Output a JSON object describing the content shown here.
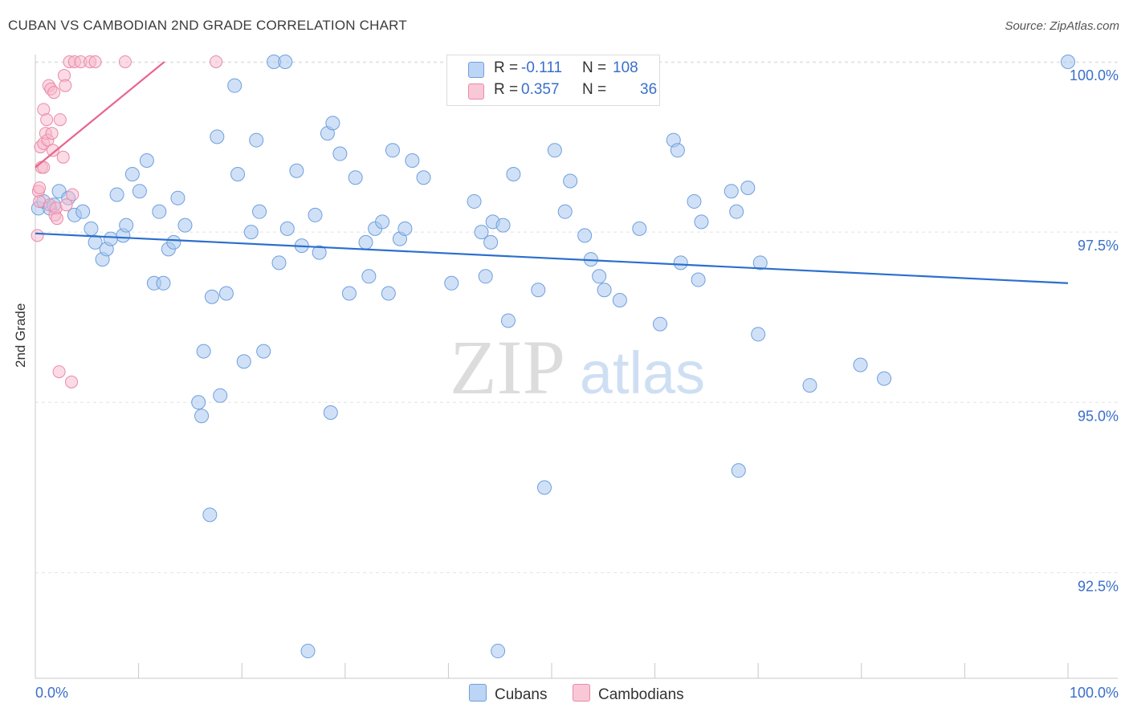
{
  "title": "CUBAN VS CAMBODIAN 2ND GRADE CORRELATION CHART",
  "source": "Source: ZipAtlas.com",
  "watermark": {
    "zip": "ZIP",
    "atlas": "atlas"
  },
  "legend": {
    "rows": [
      {
        "r_label": "R =",
        "r_value": "-0.111",
        "n_label": "N =",
        "n_value": "108"
      },
      {
        "r_label": "R =",
        "r_value": "0.357",
        "n_label": "N =",
        "n_value": "36"
      }
    ]
  },
  "colors": {
    "cuban_fill": "#a9c8f0",
    "cuban_stroke": "#6f9fdc",
    "cuban_line": "#2b6fce",
    "cambodian_fill": "#f7b8cb",
    "cambodian_stroke": "#e98aa8",
    "cambodian_line": "#e8658f",
    "axis_label": "#3a6fc9",
    "grid": "#e4e4e4"
  },
  "chart_data": {
    "type": "scatter",
    "title": "CUBAN VS CAMBODIAN 2ND GRADE CORRELATION CHART",
    "xlabel": "",
    "ylabel": "2nd Grade",
    "xlim": [
      0,
      100
    ],
    "ylim": [
      90.95,
      100.2
    ],
    "x_tick_labels": [
      "0.0%",
      "100.0%"
    ],
    "y_ticks": [
      92.5,
      95.0,
      97.5,
      100.0
    ],
    "y_tick_labels": [
      "92.5%",
      "95.0%",
      "97.5%",
      "100.0%"
    ],
    "grid": true,
    "legend_position": "bottom",
    "series": [
      {
        "name": "Cubans",
        "r": -0.111,
        "n": 108,
        "trend": {
          "x": [
            0,
            100
          ],
          "y": [
            97.48,
            96.75
          ]
        },
        "points": [
          [
            0.3,
            97.85
          ],
          [
            0.8,
            97.95
          ],
          [
            1.4,
            97.85
          ],
          [
            1.8,
            97.9
          ],
          [
            2.3,
            98.1
          ],
          [
            3.2,
            98.0
          ],
          [
            3.8,
            97.75
          ],
          [
            4.6,
            97.8
          ],
          [
            5.4,
            97.55
          ],
          [
            5.8,
            97.35
          ],
          [
            6.5,
            97.1
          ],
          [
            6.9,
            97.25
          ],
          [
            7.3,
            97.4
          ],
          [
            7.9,
            98.05
          ],
          [
            8.5,
            97.45
          ],
          [
            8.8,
            97.6
          ],
          [
            9.4,
            98.35
          ],
          [
            10.1,
            98.1
          ],
          [
            10.8,
            98.55
          ],
          [
            11.5,
            96.75
          ],
          [
            12.0,
            97.8
          ],
          [
            12.4,
            96.75
          ],
          [
            12.9,
            97.25
          ],
          [
            13.4,
            97.35
          ],
          [
            13.8,
            98.0
          ],
          [
            14.5,
            97.6
          ],
          [
            15.8,
            95.0
          ],
          [
            16.1,
            94.8
          ],
          [
            16.3,
            95.75
          ],
          [
            16.9,
            93.35
          ],
          [
            17.1,
            96.55
          ],
          [
            17.6,
            98.9
          ],
          [
            17.9,
            95.1
          ],
          [
            18.5,
            96.6
          ],
          [
            19.3,
            99.65
          ],
          [
            19.6,
            98.35
          ],
          [
            20.2,
            95.6
          ],
          [
            20.9,
            97.5
          ],
          [
            21.4,
            98.85
          ],
          [
            21.7,
            97.8
          ],
          [
            22.1,
            95.75
          ],
          [
            23.1,
            100.0
          ],
          [
            23.6,
            97.05
          ],
          [
            24.2,
            100.0
          ],
          [
            24.4,
            97.55
          ],
          [
            25.3,
            98.4
          ],
          [
            25.8,
            97.3
          ],
          [
            26.4,
            91.35
          ],
          [
            27.1,
            97.75
          ],
          [
            27.5,
            97.2
          ],
          [
            28.3,
            98.95
          ],
          [
            28.6,
            94.85
          ],
          [
            28.8,
            99.1
          ],
          [
            29.5,
            98.65
          ],
          [
            30.4,
            96.6
          ],
          [
            31.0,
            98.3
          ],
          [
            32.0,
            97.35
          ],
          [
            32.3,
            96.85
          ],
          [
            32.9,
            97.55
          ],
          [
            33.6,
            97.65
          ],
          [
            34.2,
            96.6
          ],
          [
            34.6,
            98.7
          ],
          [
            35.3,
            97.4
          ],
          [
            35.8,
            97.55
          ],
          [
            36.5,
            98.55
          ],
          [
            37.6,
            98.3
          ],
          [
            40.3,
            96.75
          ],
          [
            42.5,
            97.95
          ],
          [
            43.2,
            97.5
          ],
          [
            43.6,
            96.85
          ],
          [
            44.1,
            97.35
          ],
          [
            44.3,
            97.65
          ],
          [
            44.8,
            91.35
          ],
          [
            45.3,
            97.6
          ],
          [
            45.8,
            96.2
          ],
          [
            46.3,
            98.35
          ],
          [
            48.7,
            96.65
          ],
          [
            49.3,
            93.75
          ],
          [
            50.3,
            98.7
          ],
          [
            51.3,
            97.8
          ],
          [
            51.8,
            98.25
          ],
          [
            53.2,
            97.45
          ],
          [
            53.8,
            97.1
          ],
          [
            54.6,
            96.85
          ],
          [
            55.1,
            96.65
          ],
          [
            56.6,
            96.5
          ],
          [
            58.5,
            97.55
          ],
          [
            60.5,
            96.15
          ],
          [
            61.8,
            98.85
          ],
          [
            62.2,
            98.7
          ],
          [
            62.5,
            97.05
          ],
          [
            63.8,
            97.95
          ],
          [
            64.2,
            96.8
          ],
          [
            64.5,
            97.65
          ],
          [
            67.4,
            98.1
          ],
          [
            67.9,
            97.8
          ],
          [
            68.1,
            94.0
          ],
          [
            69.0,
            98.15
          ],
          [
            70.0,
            96.0
          ],
          [
            70.2,
            97.05
          ],
          [
            75.0,
            95.25
          ],
          [
            79.9,
            95.55
          ],
          [
            82.2,
            95.35
          ],
          [
            100.0,
            100.0
          ]
        ]
      },
      {
        "name": "Cambodians",
        "r": 0.357,
        "n": 36,
        "trend": {
          "x": [
            0,
            12.5
          ],
          "y": [
            98.45,
            100.0
          ]
        },
        "points": [
          [
            0.2,
            97.45
          ],
          [
            0.3,
            98.1
          ],
          [
            0.4,
            97.95
          ],
          [
            0.4,
            98.15
          ],
          [
            0.5,
            98.75
          ],
          [
            0.6,
            98.45
          ],
          [
            0.8,
            98.8
          ],
          [
            0.8,
            98.45
          ],
          [
            0.8,
            99.3
          ],
          [
            1.0,
            98.95
          ],
          [
            1.1,
            99.15
          ],
          [
            1.2,
            98.85
          ],
          [
            1.3,
            99.65
          ],
          [
            1.4,
            97.9
          ],
          [
            1.5,
            99.6
          ],
          [
            1.6,
            98.95
          ],
          [
            1.7,
            98.7
          ],
          [
            1.8,
            99.55
          ],
          [
            1.9,
            97.75
          ],
          [
            2.0,
            97.85
          ],
          [
            2.1,
            97.7
          ],
          [
            2.3,
            95.45
          ],
          [
            2.4,
            99.15
          ],
          [
            2.7,
            98.6
          ],
          [
            2.8,
            99.8
          ],
          [
            2.9,
            99.65
          ],
          [
            3.0,
            97.9
          ],
          [
            3.3,
            100.0
          ],
          [
            3.5,
            95.3
          ],
          [
            3.6,
            98.05
          ],
          [
            3.8,
            100.0
          ],
          [
            4.4,
            100.0
          ],
          [
            5.3,
            100.0
          ],
          [
            5.8,
            100.0
          ],
          [
            8.7,
            100.0
          ],
          [
            17.5,
            100.0
          ]
        ]
      }
    ]
  }
}
